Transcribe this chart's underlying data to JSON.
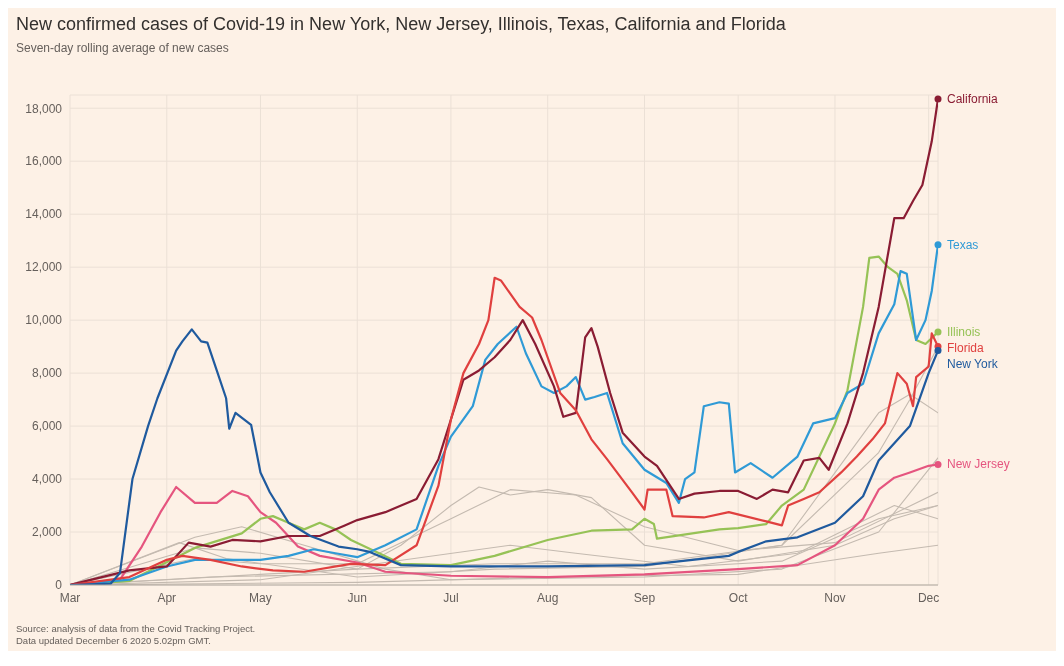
{
  "chart_data": {
    "type": "line",
    "title": "New confirmed cases of Covid-19 in New York, New Jersey, Illinois, Texas, California and Florida",
    "subtitle": "Seven-day rolling average of new cases",
    "annotations": [
      "Source: analysis of data from the Covid Tracking Project.",
      "Data updated December 6 2020 5.02pm GMT."
    ],
    "xlim": [
      "2020-03-01",
      "2020-12-04"
    ],
    "xticks": [
      {
        "value": "2020-03-01",
        "label": "Mar"
      },
      {
        "value": "2020-04-01",
        "label": "Apr"
      },
      {
        "value": "2020-05-01",
        "label": "May"
      },
      {
        "value": "2020-06-01",
        "label": "Jun"
      },
      {
        "value": "2020-07-01",
        "label": "Jul"
      },
      {
        "value": "2020-08-01",
        "label": "Aug"
      },
      {
        "value": "2020-09-01",
        "label": "Sep"
      },
      {
        "value": "2020-10-01",
        "label": "Oct"
      },
      {
        "value": "2020-11-01",
        "label": "Nov"
      },
      {
        "value": "2020-12-01",
        "label": "Dec"
      }
    ],
    "ylim": [
      0,
      18500
    ],
    "yticks": [
      0,
      {
        "value": 2000,
        "label": "2,000"
      },
      {
        "value": 4000,
        "label": "4,000"
      },
      {
        "value": 6000,
        "label": "6,000"
      },
      {
        "value": 8000,
        "label": "8,000"
      },
      {
        "value": 10000,
        "label": "10,000"
      },
      {
        "value": 12000,
        "label": "12,000"
      },
      {
        "value": 14000,
        "label": "14,000"
      },
      {
        "value": 16000,
        "label": "16,000"
      },
      {
        "value": 18000,
        "label": "18,000"
      }
    ],
    "grid": true,
    "series": [
      {
        "color": "#c4bab0",
        "x": [
          "2020-03-01",
          "2020-04-01",
          "2020-05-01",
          "2020-06-01",
          "2020-06-15",
          "2020-07-01",
          "2020-07-10",
          "2020-07-20",
          "2020-08-01",
          "2020-08-15",
          "2020-09-01",
          "2020-10-01",
          "2020-11-01",
          "2020-11-20",
          "2020-12-04"
        ],
        "values": [
          0,
          200,
          400,
          600,
          1500,
          3000,
          3700,
          3400,
          3600,
          3300,
          1500,
          900,
          1500,
          2500,
          3000
        ]
      },
      {
        "color": "#c4bab0",
        "x": [
          "2020-03-01",
          "2020-04-10",
          "2020-05-01",
          "2020-06-01",
          "2020-07-01",
          "2020-07-20",
          "2020-08-10",
          "2020-09-01",
          "2020-10-01",
          "2020-11-01",
          "2020-12-04"
        ],
        "values": [
          0,
          1000,
          800,
          800,
          2500,
          3600,
          3400,
          2200,
          1300,
          1600,
          3500
        ]
      },
      {
        "color": "#c4bab0",
        "x": [
          "2020-03-01",
          "2020-04-10",
          "2020-04-25",
          "2020-05-15",
          "2020-06-10",
          "2020-07-01",
          "2020-09-01",
          "2020-10-15",
          "2020-11-15",
          "2020-12-04"
        ],
        "values": [
          0,
          1800,
          2200,
          1500,
          600,
          200,
          300,
          600,
          2000,
          4800
        ]
      },
      {
        "color": "#c4bab0",
        "x": [
          "2020-03-01",
          "2020-04-10",
          "2020-05-01",
          "2020-06-01",
          "2020-07-15",
          "2020-09-01",
          "2020-10-15",
          "2020-11-15",
          "2020-11-25",
          "2020-12-04"
        ],
        "values": [
          0,
          1400,
          1200,
          600,
          800,
          800,
          1500,
          5000,
          7000,
          9000
        ]
      },
      {
        "color": "#c4bab0",
        "x": [
          "2020-03-01",
          "2020-04-05",
          "2020-04-20",
          "2020-06-01",
          "2020-07-15",
          "2020-09-01",
          "2020-10-15",
          "2020-11-15",
          "2020-11-25",
          "2020-12-04"
        ],
        "values": [
          0,
          1600,
          1000,
          300,
          600,
          700,
          1500,
          6500,
          7200,
          6500
        ]
      },
      {
        "color": "#c4bab0",
        "x": [
          "2020-03-01",
          "2020-04-15",
          "2020-07-01",
          "2020-08-01",
          "2020-09-01",
          "2020-10-15",
          "2020-11-15",
          "2020-12-04"
        ],
        "values": [
          0,
          300,
          500,
          900,
          600,
          900,
          2500,
          3000
        ]
      },
      {
        "color": "#c4bab0",
        "x": [
          "2020-03-01",
          "2020-05-01",
          "2020-07-20",
          "2020-08-10",
          "2020-09-15",
          "2020-10-20",
          "2020-11-20",
          "2020-12-04"
        ],
        "values": [
          0,
          200,
          1500,
          1200,
          700,
          1200,
          3000,
          2500
        ]
      },
      {
        "color": "#c4bab0",
        "x": [
          "2020-03-01",
          "2020-06-01",
          "2020-08-01",
          "2020-10-01",
          "2020-11-15",
          "2020-12-04"
        ],
        "values": [
          0,
          100,
          300,
          400,
          1200,
          1500
        ]
      },
      {
        "name": "New Jersey",
        "color": "#e5557f",
        "x": [
          "2020-03-01",
          "2020-03-17",
          "2020-03-24",
          "2020-03-30",
          "2020-04-04",
          "2020-04-10",
          "2020-04-17",
          "2020-04-22",
          "2020-04-27",
          "2020-05-01",
          "2020-05-06",
          "2020-05-13",
          "2020-05-20",
          "2020-06-01",
          "2020-06-10",
          "2020-07-01",
          "2020-08-01",
          "2020-09-01",
          "2020-10-01",
          "2020-10-20",
          "2020-11-01",
          "2020-11-10",
          "2020-11-15",
          "2020-11-20",
          "2020-11-25",
          "2020-12-01",
          "2020-12-04"
        ],
        "values": [
          0,
          200,
          1450,
          2750,
          3700,
          3100,
          3100,
          3550,
          3350,
          2750,
          2350,
          1450,
          1100,
          850,
          500,
          350,
          300,
          400,
          600,
          750,
          1500,
          2500,
          3600,
          4050,
          4250,
          4500,
          4550
        ]
      },
      {
        "name": "Illinois",
        "color": "#96c256",
        "x": [
          "2020-03-01",
          "2020-03-20",
          "2020-04-10",
          "2020-04-25",
          "2020-05-01",
          "2020-05-05",
          "2020-05-10",
          "2020-05-15",
          "2020-05-20",
          "2020-05-25",
          "2020-05-30",
          "2020-06-08",
          "2020-06-15",
          "2020-07-01",
          "2020-07-15",
          "2020-08-01",
          "2020-08-15",
          "2020-08-28",
          "2020-09-01",
          "2020-09-04",
          "2020-09-05",
          "2020-09-25",
          "2020-10-01",
          "2020-10-10",
          "2020-10-15",
          "2020-10-22",
          "2020-11-01",
          "2020-11-05",
          "2020-11-10",
          "2020-11-12",
          "2020-11-15",
          "2020-11-18",
          "2020-11-21",
          "2020-11-24",
          "2020-11-27",
          "2020-11-30",
          "2020-12-04"
        ],
        "values": [
          0,
          150,
          1400,
          1950,
          2500,
          2600,
          2350,
          2100,
          2350,
          2100,
          1700,
          1200,
          800,
          750,
          1100,
          1700,
          2050,
          2100,
          2500,
          2300,
          1750,
          2100,
          2150,
          2300,
          3000,
          3600,
          6100,
          7350,
          10500,
          12350,
          12400,
          12000,
          11750,
          10750,
          9250,
          9100,
          9550
        ]
      },
      {
        "name": "Texas",
        "color": "#2f9ad6",
        "x": [
          "2020-03-01",
          "2020-03-20",
          "2020-04-01",
          "2020-04-10",
          "2020-05-01",
          "2020-05-10",
          "2020-05-18",
          "2020-05-25",
          "2020-06-01",
          "2020-06-10",
          "2020-06-20",
          "2020-06-27",
          "2020-07-01",
          "2020-07-08",
          "2020-07-12",
          "2020-07-16",
          "2020-07-22",
          "2020-07-25",
          "2020-07-30",
          "2020-08-03",
          "2020-08-07",
          "2020-08-10",
          "2020-08-13",
          "2020-08-16",
          "2020-08-20",
          "2020-08-25",
          "2020-09-01",
          "2020-09-08",
          "2020-09-12",
          "2020-09-14",
          "2020-09-17",
          "2020-09-20",
          "2020-09-25",
          "2020-09-28",
          "2020-09-30",
          "2020-10-05",
          "2020-10-12",
          "2020-10-20",
          "2020-10-25",
          "2020-11-01",
          "2020-11-05",
          "2020-11-10",
          "2020-11-15",
          "2020-11-20",
          "2020-11-22",
          "2020-11-24",
          "2020-11-27",
          "2020-11-30",
          "2020-12-02",
          "2020-12-04"
        ],
        "values": [
          0,
          200,
          700,
          950,
          950,
          1100,
          1350,
          1200,
          1050,
          1500,
          2100,
          4500,
          5600,
          6750,
          8500,
          9100,
          9750,
          8750,
          7500,
          7250,
          7500,
          7850,
          7000,
          7100,
          7250,
          5350,
          4350,
          3850,
          3100,
          4000,
          4250,
          6750,
          6900,
          6850,
          4250,
          4600,
          4050,
          4850,
          6100,
          6300,
          7250,
          7600,
          9500,
          10600,
          11850,
          11750,
          9250,
          10000,
          11100,
          12850
        ]
      },
      {
        "name": "California",
        "color": "#8a1c33",
        "x": [
          "2020-03-01",
          "2020-03-20",
          "2020-04-01",
          "2020-04-08",
          "2020-04-15",
          "2020-04-22",
          "2020-05-01",
          "2020-05-10",
          "2020-05-20",
          "2020-05-28",
          "2020-06-01",
          "2020-06-10",
          "2020-06-20",
          "2020-06-27",
          "2020-07-01",
          "2020-07-05",
          "2020-07-10",
          "2020-07-15",
          "2020-07-20",
          "2020-07-24",
          "2020-07-28",
          "2020-08-03",
          "2020-08-06",
          "2020-08-10",
          "2020-08-13",
          "2020-08-15",
          "2020-08-17",
          "2020-08-21",
          "2020-08-25",
          "2020-09-01",
          "2020-09-05",
          "2020-09-12",
          "2020-09-17",
          "2020-09-25",
          "2020-10-01",
          "2020-10-07",
          "2020-10-12",
          "2020-10-17",
          "2020-10-22",
          "2020-10-27",
          "2020-10-30",
          "2020-11-05",
          "2020-11-10",
          "2020-11-15",
          "2020-11-20",
          "2020-11-23",
          "2020-11-26",
          "2020-11-29",
          "2020-12-02",
          "2020-12-04"
        ],
        "values": [
          0,
          550,
          700,
          1600,
          1450,
          1700,
          1650,
          1850,
          1850,
          2250,
          2450,
          2750,
          3250,
          4750,
          6250,
          7750,
          8100,
          8600,
          9250,
          10000,
          9100,
          7500,
          6350,
          6500,
          9350,
          9700,
          9000,
          7250,
          5750,
          4850,
          4500,
          3250,
          3450,
          3550,
          3550,
          3250,
          3600,
          3500,
          4700,
          4800,
          4350,
          6100,
          8000,
          10500,
          13850,
          13850,
          14500,
          15100,
          16750,
          18350
        ]
      },
      {
        "name": "Florida",
        "color": "#e0403f",
        "x": [
          "2020-03-01",
          "2020-03-20",
          "2020-04-01",
          "2020-04-06",
          "2020-04-15",
          "2020-04-25",
          "2020-05-05",
          "2020-05-15",
          "2020-05-30",
          "2020-06-10",
          "2020-06-20",
          "2020-06-27",
          "2020-07-01",
          "2020-07-05",
          "2020-07-10",
          "2020-07-13",
          "2020-07-15",
          "2020-07-17",
          "2020-07-20",
          "2020-07-23",
          "2020-07-27",
          "2020-07-30",
          "2020-08-05",
          "2020-08-10",
          "2020-08-15",
          "2020-08-20",
          "2020-08-28",
          "2020-09-01",
          "2020-09-02",
          "2020-09-08",
          "2020-09-10",
          "2020-09-20",
          "2020-09-28",
          "2020-10-10",
          "2020-10-15",
          "2020-10-17",
          "2020-10-22",
          "2020-10-27",
          "2020-11-03",
          "2020-11-08",
          "2020-11-13",
          "2020-11-17",
          "2020-11-21",
          "2020-11-24",
          "2020-11-26",
          "2020-11-27",
          "2020-12-01",
          "2020-12-02",
          "2020-12-04"
        ],
        "values": [
          0,
          300,
          950,
          1100,
          950,
          700,
          550,
          500,
          800,
          750,
          1500,
          3750,
          6250,
          8000,
          9100,
          10000,
          11600,
          11500,
          11000,
          10500,
          10100,
          9250,
          7250,
          6600,
          5500,
          4750,
          3500,
          2850,
          3600,
          3600,
          2600,
          2550,
          2750,
          2400,
          2250,
          3000,
          3250,
          3500,
          4250,
          4850,
          5500,
          6100,
          8000,
          7600,
          6750,
          7850,
          8250,
          9500,
          9000
        ]
      },
      {
        "name": "New York",
        "color": "#1f5a9e",
        "x": [
          "2020-03-01",
          "2020-03-14",
          "2020-03-17",
          "2020-03-21",
          "2020-03-26",
          "2020-03-29",
          "2020-04-04",
          "2020-04-06",
          "2020-04-09",
          "2020-04-12",
          "2020-04-14",
          "2020-04-17",
          "2020-04-20",
          "2020-04-21",
          "2020-04-23",
          "2020-04-28",
          "2020-05-01",
          "2020-05-04",
          "2020-05-10",
          "2020-05-17",
          "2020-05-26",
          "2020-06-01",
          "2020-06-05",
          "2020-06-15",
          "2020-07-01",
          "2020-08-01",
          "2020-09-01",
          "2020-09-28",
          "2020-10-01",
          "2020-10-10",
          "2020-10-20",
          "2020-11-01",
          "2020-11-10",
          "2020-11-15",
          "2020-11-20",
          "2020-11-25",
          "2020-12-01",
          "2020-12-04"
        ],
        "values": [
          0,
          50,
          450,
          4000,
          6000,
          7050,
          8850,
          9200,
          9650,
          9200,
          9150,
          8100,
          7050,
          5900,
          6500,
          6050,
          4250,
          3500,
          2350,
          1850,
          1450,
          1350,
          1250,
          750,
          700,
          700,
          750,
          1100,
          1250,
          1650,
          1800,
          2350,
          3350,
          4700,
          5350,
          6000,
          8000,
          8850
        ]
      }
    ]
  }
}
